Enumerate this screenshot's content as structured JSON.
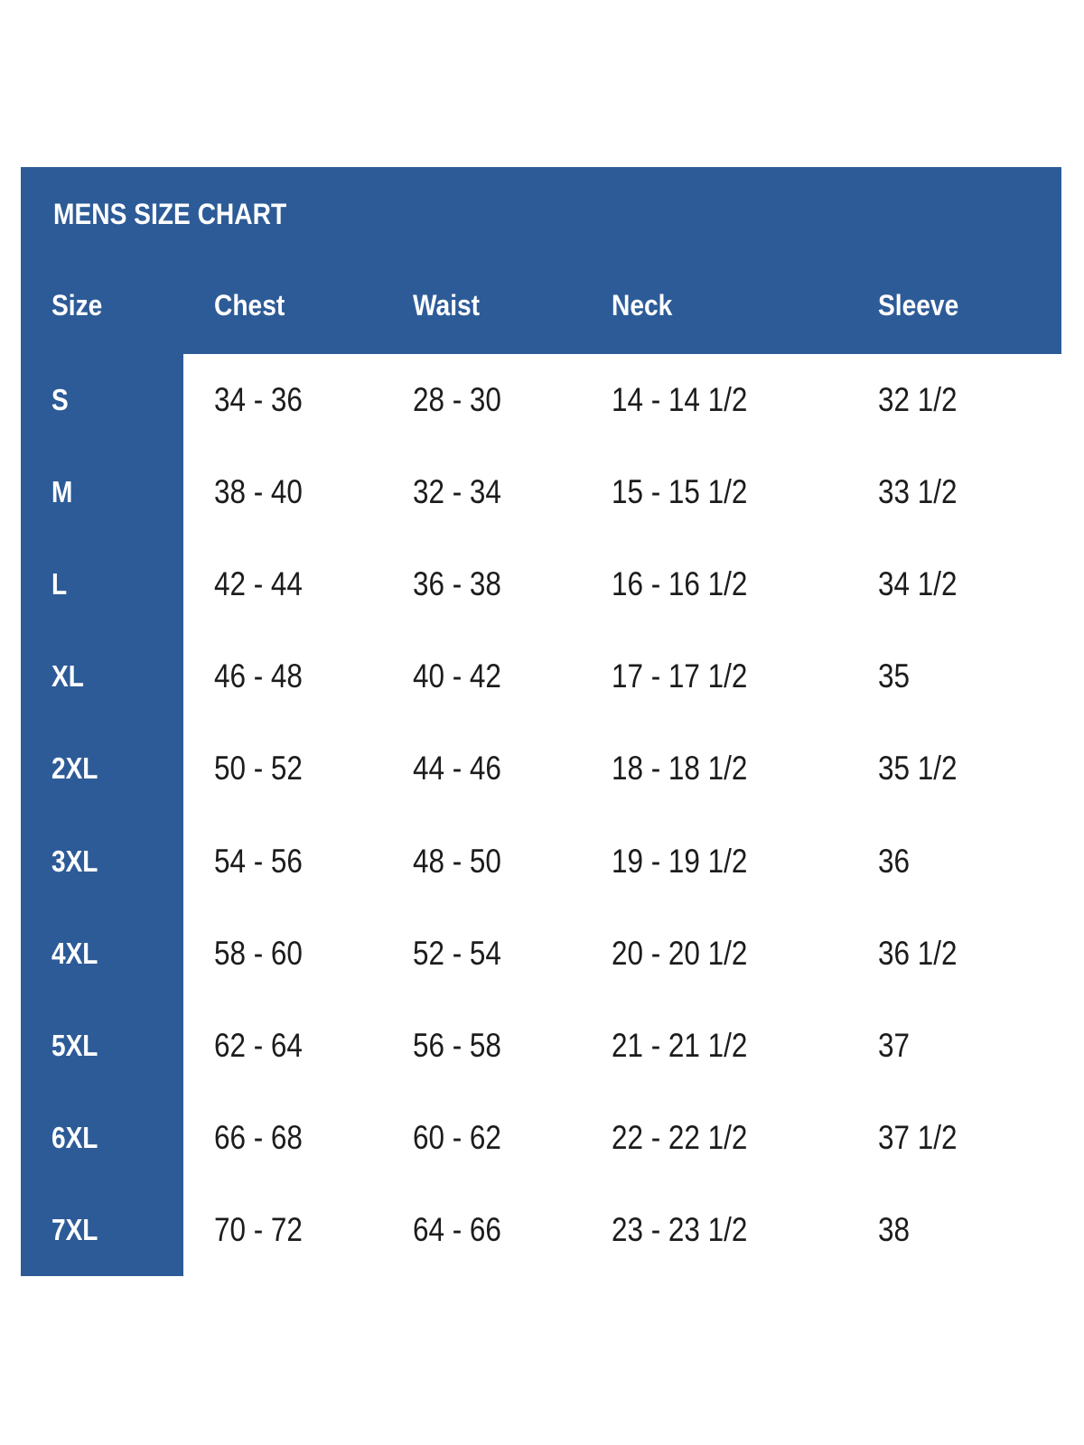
{
  "colors": {
    "panel_blue": "#2d5b97",
    "header_text": "#ffffff",
    "data_text": "#1c1c1c",
    "background": "#ffffff"
  },
  "chart_data": {
    "type": "table",
    "title": "MENS SIZE CHART",
    "columns": [
      "Size",
      "Chest",
      "Waist",
      "Neck",
      "Sleeve"
    ],
    "rows": [
      [
        "S",
        "34 - 36",
        "28 - 30",
        "14 - 14 1/2",
        "32 1/2"
      ],
      [
        "M",
        "38 - 40",
        "32 - 34",
        "15 - 15 1/2",
        "33 1/2"
      ],
      [
        "L",
        "42 - 44",
        "36 - 38",
        "16 - 16 1/2",
        "34 1/2"
      ],
      [
        "XL",
        "46 - 48",
        "40 - 42",
        "17 - 17 1/2",
        "35"
      ],
      [
        "2XL",
        "50 - 52",
        "44 - 46",
        "18 - 18 1/2",
        "35 1/2"
      ],
      [
        "3XL",
        "54 - 56",
        "48 - 50",
        "19 - 19 1/2",
        "36"
      ],
      [
        "4XL",
        "58 - 60",
        "52 - 54",
        "20 - 20 1/2",
        "36 1/2"
      ],
      [
        "5XL",
        "62 - 64",
        "56 - 58",
        "21 - 21 1/2",
        "37"
      ],
      [
        "6XL",
        "66 - 68",
        "60 - 62",
        "22 - 22 1/2",
        "37 1/2"
      ],
      [
        "7XL",
        "70 - 72",
        "64 - 66",
        "23 - 23 1/2",
        "38"
      ]
    ]
  }
}
